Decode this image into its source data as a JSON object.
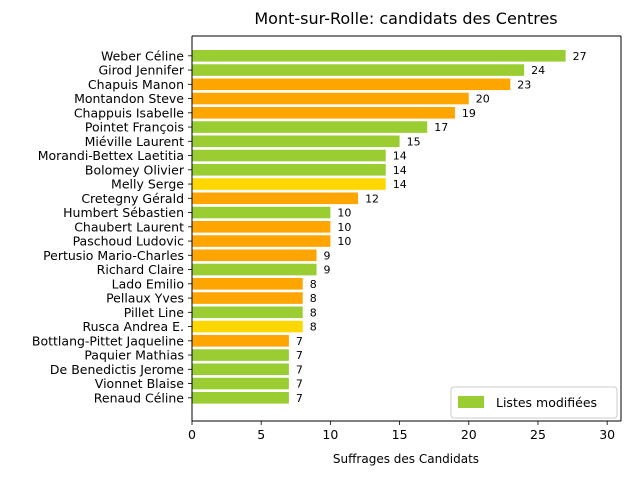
{
  "chart_data": {
    "type": "bar",
    "orientation": "horizontal",
    "title": "Mont-sur-Rolle: candidats des Centres",
    "xlabel": "Suffrages des Candidats",
    "ylabel": "",
    "xlim": [
      0,
      31
    ],
    "xticks": [
      0,
      5,
      10,
      15,
      20,
      25,
      30
    ],
    "grid": false,
    "legend": {
      "position": "bottom-right",
      "entries": [
        {
          "label": "Listes modifiées",
          "color": "#9acd32"
        }
      ]
    },
    "colors": {
      "green": "#9acd32",
      "orange": "#ffa500",
      "gold": "#ffd700"
    },
    "categories": [
      "Weber Céline",
      "Girod Jennifer",
      "Chapuis Manon",
      "Montandon Steve",
      "Chappuis Isabelle",
      "Pointet François",
      "Miéville Laurent",
      "Morandi-Bettex Laetitia",
      "Bolomey Olivier",
      "Melly Serge",
      "Cretegny Gérald",
      "Humbert Sébastien",
      "Chaubert Laurent",
      "Paschoud Ludovic",
      "Pertusio Mario-Charles",
      "Richard Claire",
      "Lado Emilio",
      "Pellaux Yves",
      "Pillet Line",
      "Rusca Andrea E.",
      "Bottlang-Pittet Jaqueline",
      "Paquier Mathias",
      "De Benedictis Jerome",
      "Vionnet Blaise",
      "Renaud Céline"
    ],
    "values": [
      27,
      24,
      23,
      20,
      19,
      17,
      15,
      14,
      14,
      14,
      12,
      10,
      10,
      10,
      9,
      9,
      8,
      8,
      8,
      8,
      7,
      7,
      7,
      7,
      7
    ],
    "bar_colors": [
      "green",
      "green",
      "orange",
      "orange",
      "orange",
      "green",
      "green",
      "green",
      "green",
      "gold",
      "orange",
      "green",
      "orange",
      "orange",
      "orange",
      "green",
      "orange",
      "orange",
      "green",
      "gold",
      "orange",
      "green",
      "green",
      "green",
      "green"
    ]
  }
}
